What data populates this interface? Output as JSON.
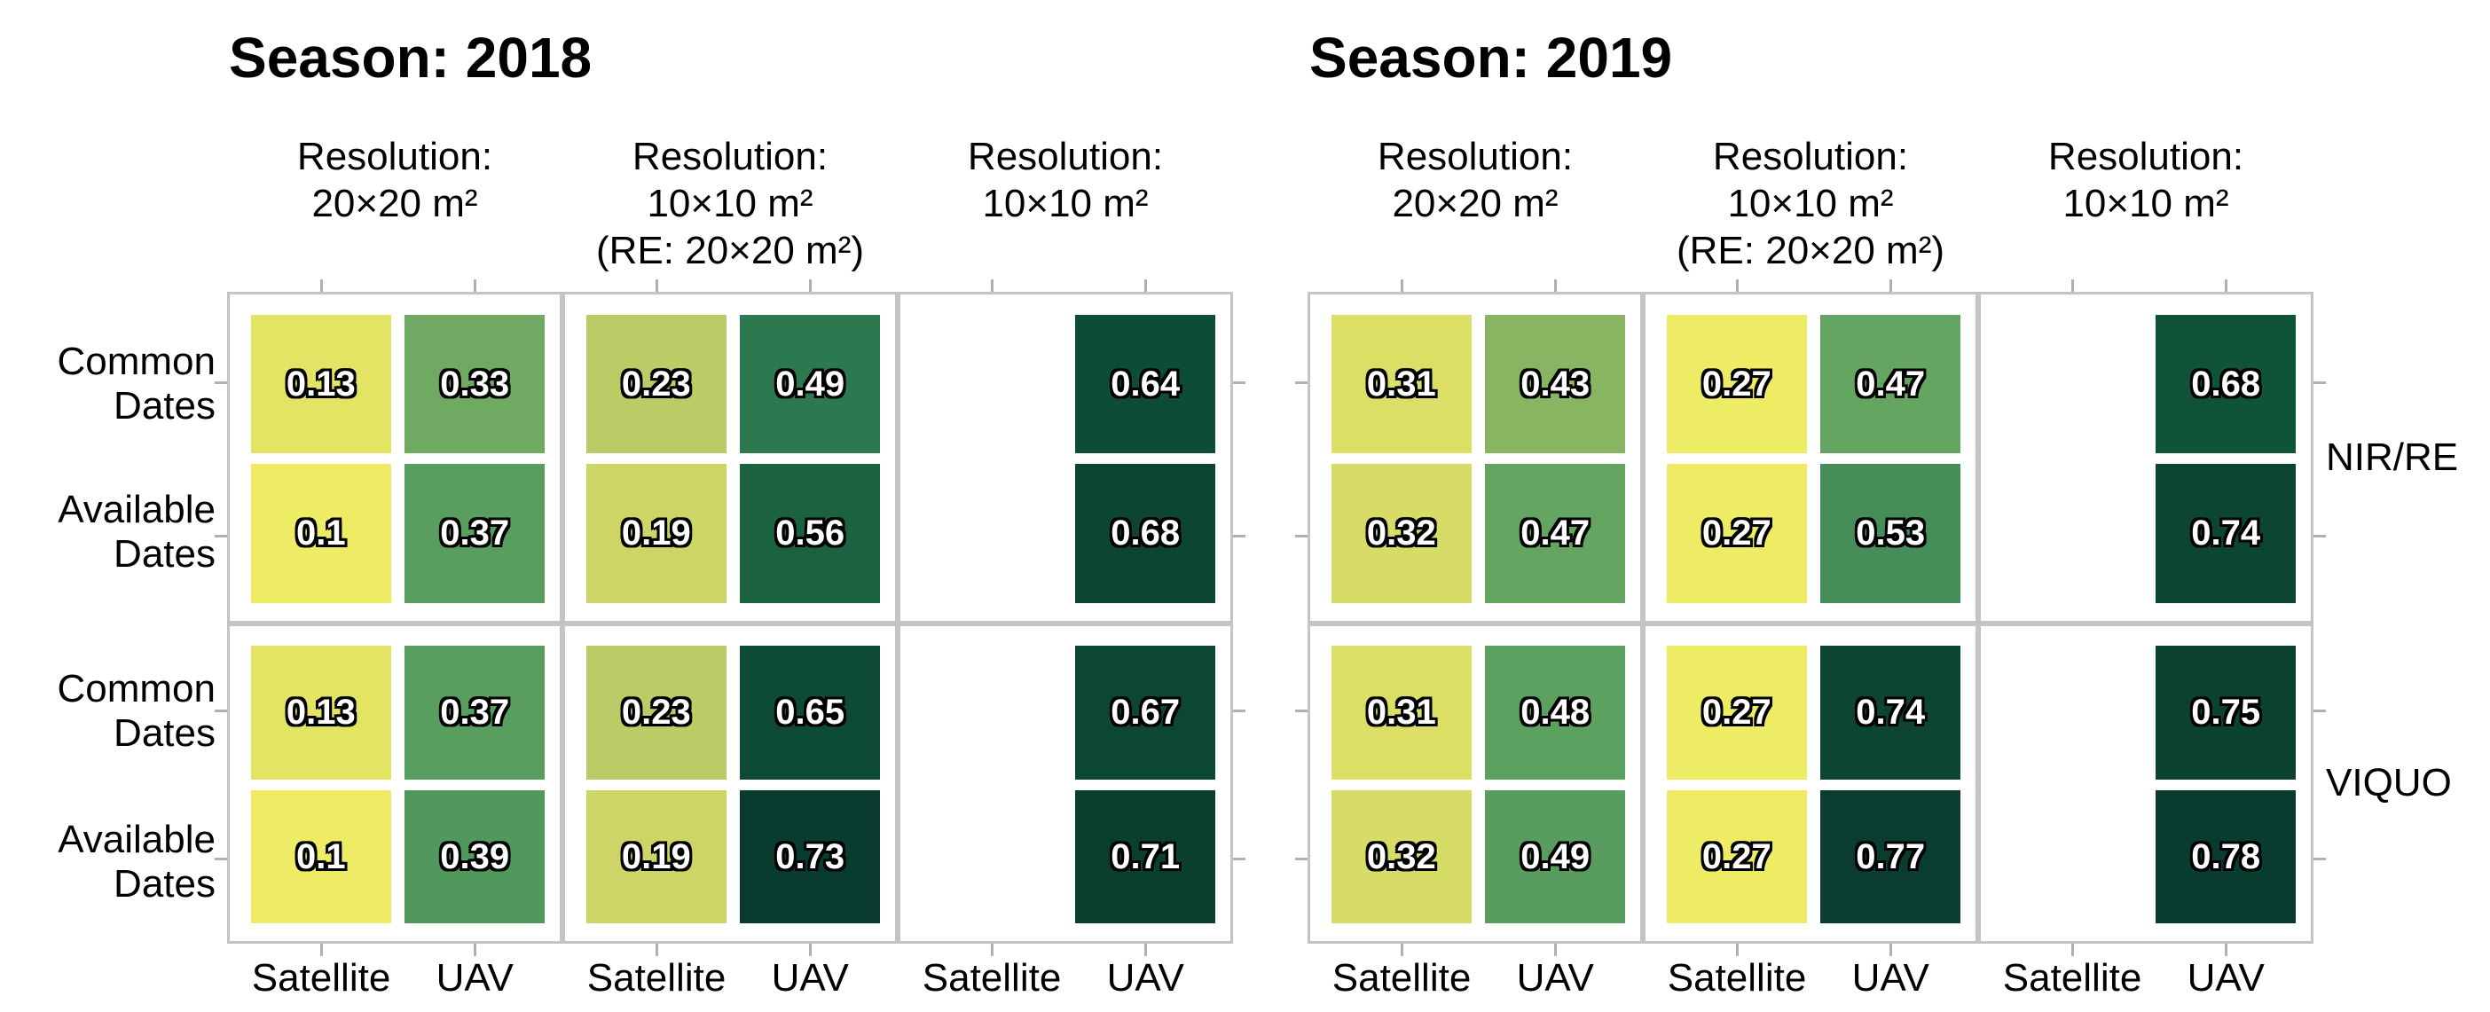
{
  "figure": {
    "background": "#ffffff",
    "panel_border_color": "#c4c4c4",
    "tick_color": "#b0b0b0",
    "text_color": "#000000",
    "cell_value_color": "#ffffff",
    "cell_value_outline_color": "#000000"
  },
  "chart_data": {
    "type": "heatmap",
    "x_categories": [
      "Satellite",
      "UAV"
    ],
    "y_categories": [
      [
        "Common",
        "Dates"
      ],
      [
        "Available",
        "Dates"
      ]
    ],
    "facet_row_labels": [
      "NIR/RE",
      "VIQUO"
    ],
    "colormap": {
      "description": "yellow-green sequential, normalized per season (vmin..vmax)",
      "anchors": [
        {
          "t": 0.0,
          "color": "#EEEB64"
        },
        {
          "t": 0.2,
          "color": "#BECC66"
        },
        {
          "t": 0.4,
          "color": "#60A361"
        },
        {
          "t": 0.6,
          "color": "#2F7D53"
        },
        {
          "t": 0.8,
          "color": "#105438"
        },
        {
          "t": 1.0,
          "color": "#093B2E"
        }
      ]
    },
    "seasons": [
      {
        "title": "Season: 2018",
        "vmin": 0.1,
        "vmax": 0.73,
        "column_headers": [
          [
            "Resolution:",
            "20×20 m²"
          ],
          [
            "Resolution:",
            "10×10 m²",
            "(RE: 20×20 m²)"
          ],
          [
            "Resolution:",
            "10×10 m²"
          ]
        ],
        "facets": [
          {
            "label": "NIR/RE",
            "panels": [
              {
                "rows": [
                  [
                    0.13,
                    0.33
                  ],
                  [
                    0.1,
                    0.37
                  ]
                ]
              },
              {
                "rows": [
                  [
                    0.23,
                    0.49
                  ],
                  [
                    0.19,
                    0.56
                  ]
                ]
              },
              {
                "rows": [
                  [
                    null,
                    0.64
                  ],
                  [
                    null,
                    0.68
                  ]
                ]
              }
            ]
          },
          {
            "label": "VIQUO",
            "panels": [
              {
                "rows": [
                  [
                    0.13,
                    0.37
                  ],
                  [
                    0.1,
                    0.39
                  ]
                ]
              },
              {
                "rows": [
                  [
                    0.23,
                    0.65
                  ],
                  [
                    0.19,
                    0.73
                  ]
                ]
              },
              {
                "rows": [
                  [
                    null,
                    0.67
                  ],
                  [
                    null,
                    0.71
                  ]
                ]
              }
            ]
          }
        ]
      },
      {
        "title": "Season: 2019",
        "vmin": 0.27,
        "vmax": 0.78,
        "column_headers": [
          [
            "Resolution:",
            "20×20 m²"
          ],
          [
            "Resolution:",
            "10×10 m²",
            "(RE: 20×20 m²)"
          ],
          [
            "Resolution:",
            "10×10 m²"
          ]
        ],
        "facets": [
          {
            "label": "NIR/RE",
            "panels": [
              {
                "rows": [
                  [
                    0.31,
                    0.43
                  ],
                  [
                    0.32,
                    0.47
                  ]
                ]
              },
              {
                "rows": [
                  [
                    0.27,
                    0.47
                  ],
                  [
                    0.27,
                    0.53
                  ]
                ]
              },
              {
                "rows": [
                  [
                    null,
                    0.68
                  ],
                  [
                    null,
                    0.74
                  ]
                ]
              }
            ]
          },
          {
            "label": "VIQUO",
            "panels": [
              {
                "rows": [
                  [
                    0.31,
                    0.48
                  ],
                  [
                    0.32,
                    0.49
                  ]
                ]
              },
              {
                "rows": [
                  [
                    0.27,
                    0.74
                  ],
                  [
                    0.27,
                    0.77
                  ]
                ]
              },
              {
                "rows": [
                  [
                    null,
                    0.75
                  ],
                  [
                    null,
                    0.78
                  ]
                ]
              }
            ]
          }
        ]
      }
    ]
  }
}
